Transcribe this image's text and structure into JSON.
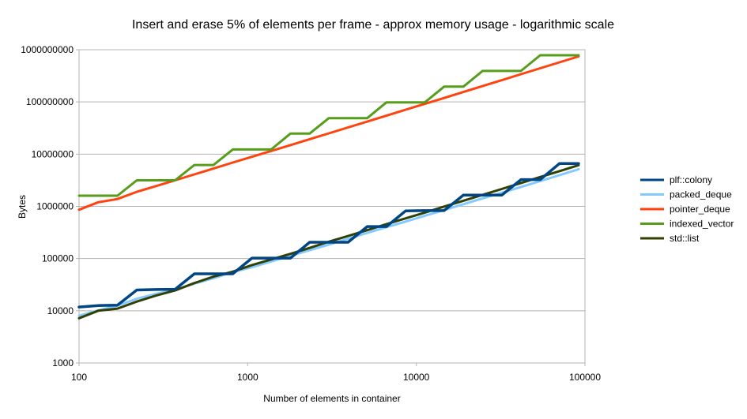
{
  "chart_data": {
    "type": "line",
    "title": "Insert and erase 5% of elements per frame - approx memory usage - logarithmic scale",
    "xlabel": "Number of elements in container",
    "ylabel": "Bytes",
    "x_scale": "log",
    "y_scale": "log",
    "xlim": [
      100,
      100000
    ],
    "ylim": [
      1000,
      1000000000
    ],
    "x_ticks": [
      100,
      1000,
      10000,
      100000
    ],
    "x_tick_labels": [
      "100",
      "1000",
      "10000",
      "100000"
    ],
    "y_ticks": [
      1000,
      10000,
      100000,
      1000000,
      10000000,
      100000000,
      1000000000
    ],
    "y_tick_labels": [
      "1000",
      "10000",
      "100000",
      "1000000",
      "10000000",
      "100000000",
      "1000000000"
    ],
    "grid": "horizontal",
    "legend": "right",
    "x": [
      100,
      130,
      169,
      220,
      286,
      371,
      483,
      627,
      816,
      1060,
      1379,
      1792,
      2330,
      3029,
      3937,
      5119,
      6654,
      8650,
      11246,
      14619,
      19005,
      24706,
      32118,
      41754,
      54280,
      70564,
      91733
    ],
    "series": [
      {
        "name": "plf::colony",
        "color": "#004586",
        "values": [
          11800,
          12600,
          12800,
          25000,
          25500,
          25800,
          51000,
          51000,
          51000,
          102000,
          102000,
          102000,
          205000,
          205000,
          205000,
          410000,
          410000,
          820000,
          830000,
          830000,
          1640000,
          1640000,
          1640000,
          3250000,
          3250000,
          6600000,
          6600000
        ]
      },
      {
        "name": "packed_deque",
        "color": "#83caff",
        "values": [
          8000,
          10200,
          12500,
          17000,
          21000,
          25500,
          33000,
          42000,
          55000,
          68000,
          88000,
          113000,
          145000,
          185000,
          240000,
          310000,
          400000,
          510000,
          660000,
          850000,
          1100000,
          1420000,
          1820000,
          2350000,
          3050000,
          3950000,
          5150000
        ]
      },
      {
        "name": "pointer_deque",
        "color": "#ff420e",
        "values": [
          860000,
          1200000,
          1380000,
          1900000,
          2450000,
          3150000,
          4100000,
          5300000,
          6900000,
          8900000,
          11500000,
          14900000,
          19300000,
          25000000,
          32500000,
          42000000,
          54500000,
          71000000,
          92000000,
          119000000,
          155000000,
          201000000,
          261000000,
          340000000,
          441000000,
          573000000,
          745000000
        ]
      },
      {
        "name": "indexed_vector",
        "color": "#579d1c",
        "values": [
          1600000,
          1600000,
          1600000,
          3150000,
          3150000,
          3150000,
          6200000,
          6200000,
          12300000,
          12300000,
          12300000,
          24700000,
          24700000,
          49000000,
          49000000,
          49000000,
          98000000,
          98000000,
          98000000,
          196000000,
          196000000,
          392000000,
          392000000,
          392000000,
          785000000,
          785000000,
          785000000
        ]
      },
      {
        "name": "std::list",
        "color": "#314004",
        "values": [
          7200,
          10000,
          11000,
          15000,
          19500,
          24500,
          34000,
          45000,
          56000,
          75000,
          96000,
          123000,
          160000,
          210000,
          270000,
          350000,
          455000,
          590000,
          760000,
          990000,
          1280000,
          1660000,
          2150000,
          2800000,
          3650000,
          4720000,
          6150000
        ]
      }
    ]
  }
}
